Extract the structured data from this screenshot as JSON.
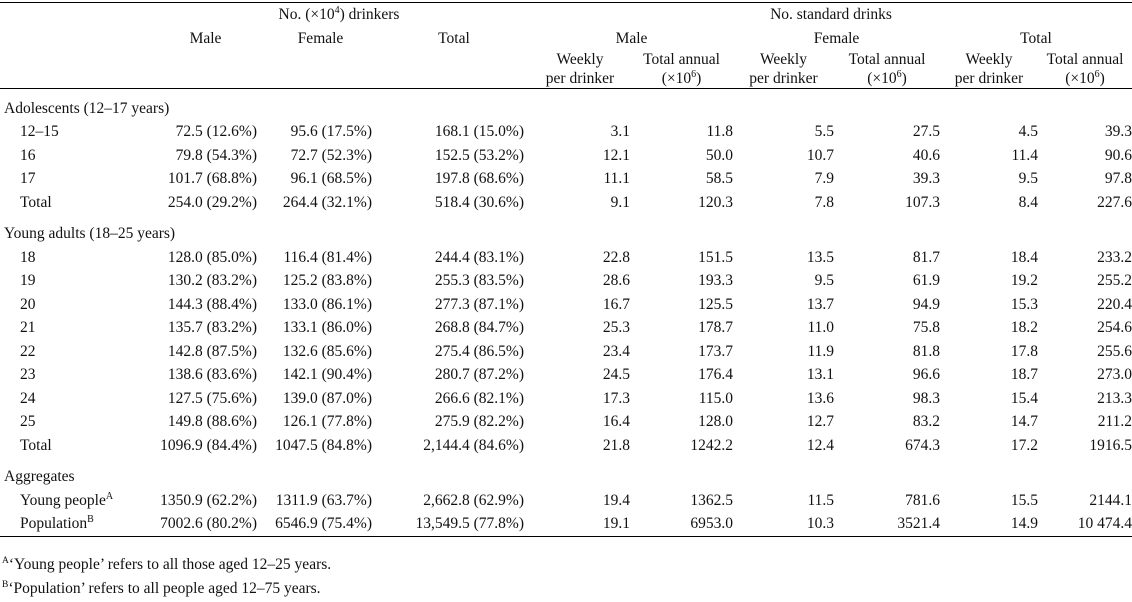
{
  "header": {
    "drinkers_group": "No. (×10",
    "drinkers_group_exp": "4",
    "drinkers_group_tail": ") drinkers",
    "drinks_group": "No. standard drinks",
    "male": "Male",
    "female": "Female",
    "total": "Total",
    "weekly_line1": "Weekly",
    "weekly_line2": "per drinker",
    "annual_line1": "Total annual",
    "annual_line2_pre": "(×10",
    "annual_line2_exp": "6",
    "annual_line2_post": ")"
  },
  "sections": [
    {
      "title": "Adolescents (12–17 years)",
      "rows": [
        [
          "12–15",
          "72.5 (12.6%)",
          "95.6 (17.5%)",
          "168.1 (15.0%)",
          "3.1",
          "11.8",
          "5.5",
          "27.5",
          "4.5",
          "39.3"
        ],
        [
          "16",
          "79.8 (54.3%)",
          "72.7 (52.3%)",
          "152.5 (53.2%)",
          "12.1",
          "50.0",
          "10.7",
          "40.6",
          "11.4",
          "90.6"
        ],
        [
          "17",
          "101.7 (68.8%)",
          "96.1 (68.5%)",
          "197.8 (68.6%)",
          "11.1",
          "58.5",
          "7.9",
          "39.3",
          "9.5",
          "97.8"
        ],
        [
          "Total",
          "254.0 (29.2%)",
          "264.4 (32.1%)",
          "518.4 (30.6%)",
          "9.1",
          "120.3",
          "7.8",
          "107.3",
          "8.4",
          "227.6"
        ]
      ]
    },
    {
      "title": "Young adults (18–25 years)",
      "rows": [
        [
          "18",
          "128.0 (85.0%)",
          "116.4 (81.4%)",
          "244.4 (83.1%)",
          "22.8",
          "151.5",
          "13.5",
          "81.7",
          "18.4",
          "233.2"
        ],
        [
          "19",
          "130.2 (83.2%)",
          "125.2 (83.8%)",
          "255.3 (83.5%)",
          "28.6",
          "193.3",
          "9.5",
          "61.9",
          "19.2",
          "255.2"
        ],
        [
          "20",
          "144.3 (88.4%)",
          "133.0 (86.1%)",
          "277.3 (87.1%)",
          "16.7",
          "125.5",
          "13.7",
          "94.9",
          "15.3",
          "220.4"
        ],
        [
          "21",
          "135.7 (83.2%)",
          "133.1 (86.0%)",
          "268.8 (84.7%)",
          "25.3",
          "178.7",
          "11.0",
          "75.8",
          "18.2",
          "254.6"
        ],
        [
          "22",
          "142.8 (87.5%)",
          "132.6 (85.6%)",
          "275.4 (86.5%)",
          "23.4",
          "173.7",
          "11.9",
          "81.8",
          "17.8",
          "255.6"
        ],
        [
          "23",
          "138.6 (83.6%)",
          "142.1 (90.4%)",
          "280.7 (87.2%)",
          "24.5",
          "176.4",
          "13.1",
          "96.6",
          "18.7",
          "273.0"
        ],
        [
          "24",
          "127.5 (75.6%)",
          "139.0 (87.0%)",
          "266.6 (82.1%)",
          "17.3",
          "115.0",
          "13.6",
          "98.3",
          "15.4",
          "213.3"
        ],
        [
          "25",
          "149.8 (88.6%)",
          "126.1 (77.8%)",
          "275.9 (82.2%)",
          "16.4",
          "128.0",
          "12.7",
          "83.2",
          "14.7",
          "211.2"
        ],
        [
          "Total",
          "1096.9 (84.4%)",
          "1047.5 (84.8%)",
          "2,144.4 (84.6%)",
          "21.8",
          "1242.2",
          "12.4",
          "674.3",
          "17.2",
          "1916.5"
        ]
      ]
    }
  ],
  "aggregates": {
    "title": "Aggregates",
    "rows": [
      {
        "label": "Young people",
        "sup": "A",
        "cells": [
          "1350.9 (62.2%)",
          "1311.9 (63.7%)",
          "2,662.8 (62.9%)",
          "19.4",
          "1362.5",
          "11.5",
          "781.6",
          "15.5",
          "2144.1"
        ]
      },
      {
        "label": "Population",
        "sup": "B",
        "cells": [
          "7002.6 (80.2%)",
          "6546.9 (75.4%)",
          "13,549.5 (77.8%)",
          "19.1",
          "6953.0",
          "10.3",
          "3521.4",
          "14.9",
          "10 474.4"
        ]
      }
    ]
  },
  "footnotes": [
    {
      "mark": "A",
      "text": "‘Young people’ refers to all those aged 12–25 years."
    },
    {
      "mark": "B",
      "text": "‘Population’ refers to all people aged 12–75 years."
    }
  ]
}
